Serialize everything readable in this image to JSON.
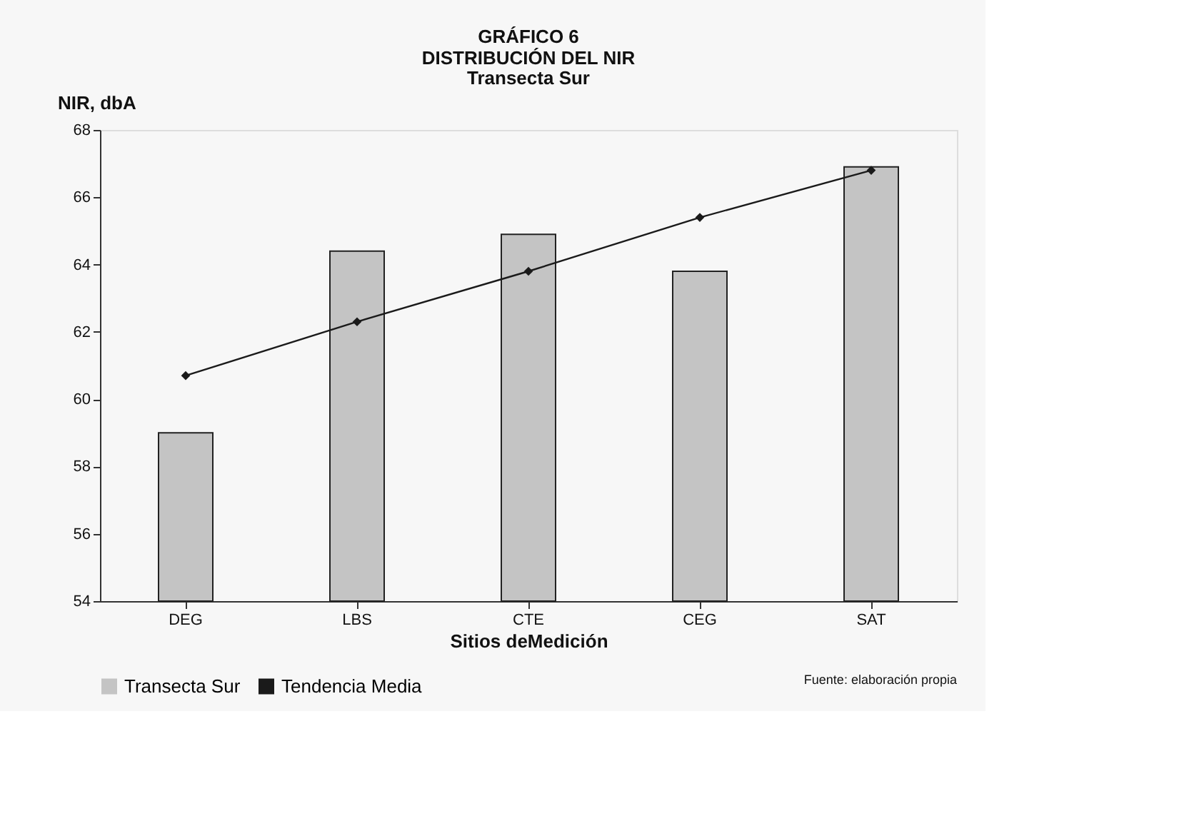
{
  "chart_data": {
    "type": "bar",
    "title": "GRÁFICO 6\nDISTRIBUCIÓN DEL NIR",
    "subtitle": "Transecta Sur",
    "xlabel": "Sitios deMedición",
    "ylabel": "NIR, dbA",
    "categories": [
      "DEG",
      "LBS",
      "CTE",
      "CEG",
      "SAT"
    ],
    "series": [
      {
        "name": "Transecta Sur",
        "color": "#c4c4c4",
        "values": [
          59.0,
          64.4,
          64.9,
          63.8,
          66.9
        ]
      },
      {
        "name": "Tendencia Media",
        "type": "line",
        "color": "#1a1a1a",
        "marker": "diamond",
        "values": [
          60.7,
          62.3,
          63.8,
          65.4,
          66.8
        ]
      }
    ],
    "ylim": [
      54,
      68
    ],
    "yticks": [
      54,
      56,
      58,
      60,
      62,
      64,
      66,
      68
    ],
    "grid": false,
    "legend": "bottom",
    "annotations": [
      "Fuente: elaboración propia"
    ]
  }
}
